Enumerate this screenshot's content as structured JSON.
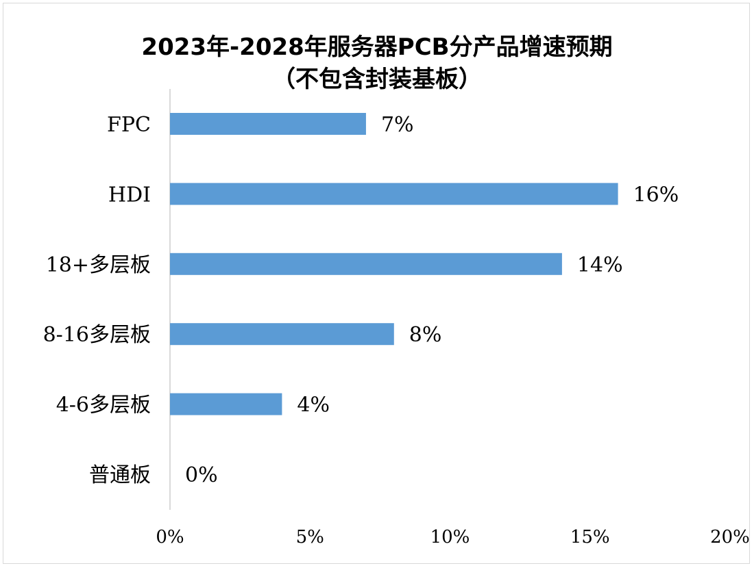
{
  "chart_data": {
    "type": "bar",
    "orientation": "horizontal",
    "title": "2023年-2028年服务器PCB分产品增速预期",
    "subtitle": "（不包含封装基板）",
    "categories": [
      "FPC",
      "HDI",
      "18+多层板",
      "8-16多层板",
      "4-6多层板",
      "普通板"
    ],
    "values": [
      7,
      16,
      14,
      8,
      4,
      0
    ],
    "data_labels": [
      "7%",
      "16%",
      "14%",
      "8%",
      "4%",
      "0%"
    ],
    "xlim": [
      0,
      20
    ],
    "x_ticks": [
      0,
      5,
      10,
      15,
      20
    ],
    "x_tick_labels": [
      "0%",
      "5%",
      "10%",
      "15%",
      "20%"
    ],
    "grid": false,
    "legend": "none",
    "bar_color": "#5b9bd5",
    "axis_color": "#d9d9d9"
  }
}
